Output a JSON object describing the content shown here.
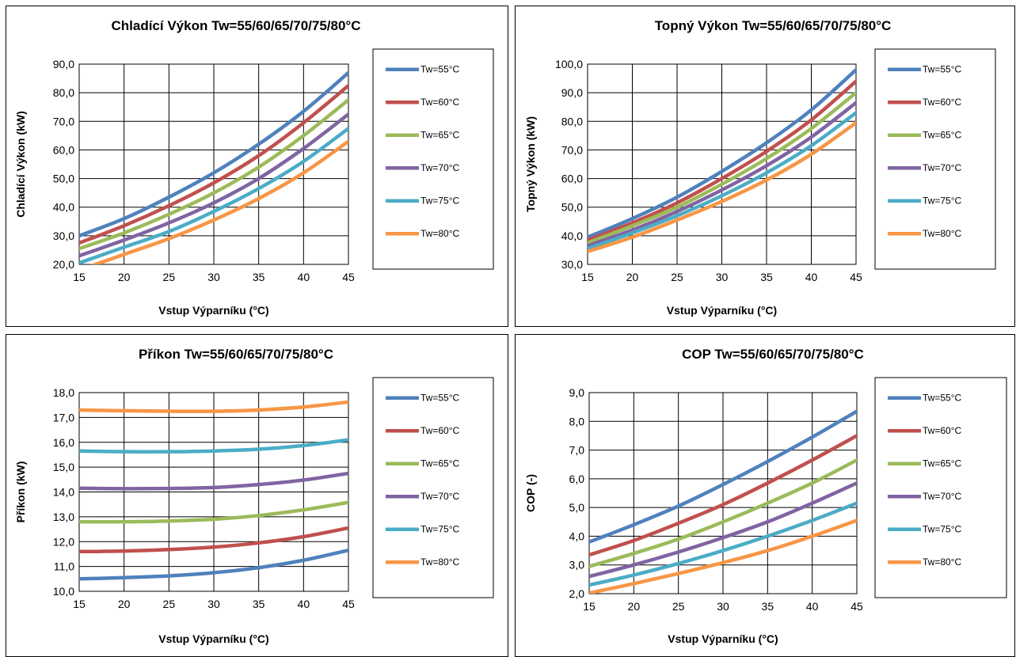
{
  "charts": [
    {
      "chart_data": {
        "type": "line",
        "title": "Chladící Výkon Tw=55/60/65/70/75/80°C",
        "xlabel": "Vstup Výparníku (°C)",
        "ylabel": "Chladící Výkon (kW)",
        "xlim": [
          15,
          45
        ],
        "ylim": [
          20,
          90
        ],
        "xticks": [
          "15",
          "20",
          "25",
          "30",
          "35",
          "40",
          "45"
        ],
        "yticks": [
          "20,0",
          "30,0",
          "40,0",
          "50,0",
          "60,0",
          "70,0",
          "80,0",
          "90,0"
        ],
        "x": [
          15,
          20,
          25,
          30,
          35,
          40,
          45
        ],
        "grid": true,
        "legend": "right",
        "series": [
          {
            "name": "Tw=55°C",
            "color": "#4F81BD",
            "values": [
              30.0,
              36.0,
              43.5,
              52.0,
              62.0,
              73.5,
              87.0
            ]
          },
          {
            "name": "Tw=60°C",
            "color": "#C0504D",
            "values": [
              27.5,
              33.5,
              40.5,
              48.5,
              58.0,
              69.5,
              82.5
            ]
          },
          {
            "name": "Tw=65°C",
            "color": "#9BBB59",
            "values": [
              25.5,
              31.0,
              37.5,
              45.0,
              54.0,
              65.0,
              77.5
            ]
          },
          {
            "name": "Tw=70°C",
            "color": "#8064A2",
            "values": [
              23.0,
              28.5,
              34.5,
              41.5,
              50.0,
              60.5,
              72.5
            ]
          },
          {
            "name": "Tw=75°C",
            "color": "#4BACC6",
            "values": [
              20.5,
              26.0,
              31.5,
              38.5,
              46.5,
              56.0,
              67.5
            ]
          },
          {
            "name": "Tw=80°C",
            "color": "#F79646",
            "values": [
              18.0,
              23.5,
              29.0,
              35.5,
              43.0,
              52.0,
              63.0
            ]
          }
        ]
      }
    },
    {
      "chart_data": {
        "type": "line",
        "title": "Topný Výkon Tw=55/60/65/70/75/80°C",
        "xlabel": "Vstup Výparníku (°C)",
        "ylabel": "Topný Výkon (kW)",
        "xlim": [
          15,
          45
        ],
        "ylim": [
          30,
          100
        ],
        "xticks": [
          "15",
          "20",
          "25",
          "30",
          "35",
          "40",
          "45"
        ],
        "yticks": [
          "30,0",
          "40,0",
          "50,0",
          "60,0",
          "70,0",
          "80,0",
          "90,0",
          "100,0"
        ],
        "x": [
          15,
          20,
          25,
          30,
          35,
          40,
          45
        ],
        "grid": true,
        "legend": "right",
        "series": [
          {
            "name": "Tw=55°C",
            "color": "#4F81BD",
            "values": [
              39.5,
              46.0,
              53.5,
              62.5,
              72.5,
              84.0,
              98.0
            ]
          },
          {
            "name": "Tw=60°C",
            "color": "#C0504D",
            "values": [
              38.5,
              44.5,
              51.5,
              60.0,
              69.5,
              80.5,
              94.0
            ]
          },
          {
            "name": "Tw=65°C",
            "color": "#9BBB59",
            "values": [
              37.5,
              43.5,
              50.0,
              58.0,
              67.0,
              77.5,
              90.0
            ]
          },
          {
            "name": "Tw=70°C",
            "color": "#8064A2",
            "values": [
              36.5,
              42.0,
              48.5,
              56.0,
              64.5,
              74.5,
              86.5
            ]
          },
          {
            "name": "Tw=75°C",
            "color": "#4BACC6",
            "values": [
              35.5,
              41.0,
              47.0,
              54.0,
              62.0,
              71.5,
              83.0
            ]
          },
          {
            "name": "Tw=80°C",
            "color": "#F79646",
            "values": [
              34.5,
              39.5,
              45.5,
              52.0,
              59.5,
              68.5,
              79.5
            ]
          }
        ]
      }
    },
    {
      "chart_data": {
        "type": "line",
        "title": "Příkon Tw=55/60/65/70/75/80°C",
        "xlabel": "Vstup Výparníku (°C)",
        "ylabel": "Příkon (kW)",
        "xlim": [
          15,
          45
        ],
        "ylim": [
          10,
          18
        ],
        "xticks": [
          "15",
          "20",
          "25",
          "30",
          "35",
          "40",
          "45"
        ],
        "yticks": [
          "10,0",
          "11,0",
          "12,0",
          "13,0",
          "14,0",
          "15,0",
          "16,0",
          "17,0",
          "18,0"
        ],
        "x": [
          15,
          20,
          25,
          30,
          35,
          40,
          45
        ],
        "grid": true,
        "legend": "right",
        "series": [
          {
            "name": "Tw=55°C",
            "color": "#4F81BD",
            "values": [
              10.5,
              10.55,
              10.62,
              10.75,
              10.95,
              11.25,
              11.65
            ]
          },
          {
            "name": "Tw=60°C",
            "color": "#C0504D",
            "values": [
              11.6,
              11.62,
              11.68,
              11.78,
              11.95,
              12.2,
              12.55
            ]
          },
          {
            "name": "Tw=65°C",
            "color": "#9BBB59",
            "values": [
              12.8,
              12.8,
              12.83,
              12.9,
              13.05,
              13.28,
              13.58
            ]
          },
          {
            "name": "Tw=70°C",
            "color": "#8064A2",
            "values": [
              14.15,
              14.13,
              14.14,
              14.18,
              14.3,
              14.48,
              14.75
            ]
          },
          {
            "name": "Tw=75°C",
            "color": "#4BACC6",
            "values": [
              15.65,
              15.62,
              15.62,
              15.65,
              15.72,
              15.87,
              16.1
            ]
          },
          {
            "name": "Tw=80°C",
            "color": "#F79646",
            "values": [
              17.3,
              17.27,
              17.25,
              17.25,
              17.3,
              17.42,
              17.62
            ]
          }
        ]
      }
    },
    {
      "chart_data": {
        "type": "line",
        "title": "COP Tw=55/60/65/70/75/80°C",
        "xlabel": "Vstup Výparníku (°C)",
        "ylabel": "COP (-)",
        "xlim": [
          15,
          45
        ],
        "ylim": [
          2,
          9
        ],
        "xticks": [
          "15",
          "20",
          "25",
          "30",
          "35",
          "40",
          "45"
        ],
        "yticks": [
          "2,0",
          "3,0",
          "4,0",
          "5,0",
          "6,0",
          "7,0",
          "8,0",
          "9,0"
        ],
        "x": [
          15,
          20,
          25,
          30,
          35,
          40,
          45
        ],
        "grid": true,
        "legend": "right",
        "series": [
          {
            "name": "Tw=55°C",
            "color": "#4F81BD",
            "values": [
              3.8,
              4.4,
              5.05,
              5.8,
              6.6,
              7.45,
              8.35
            ]
          },
          {
            "name": "Tw=60°C",
            "color": "#C0504D",
            "values": [
              3.35,
              3.85,
              4.45,
              5.1,
              5.85,
              6.65,
              7.5
            ]
          },
          {
            "name": "Tw=65°C",
            "color": "#9BBB59",
            "values": [
              2.95,
              3.4,
              3.9,
              4.5,
              5.15,
              5.85,
              6.65
            ]
          },
          {
            "name": "Tw=70°C",
            "color": "#8064A2",
            "values": [
              2.6,
              3.0,
              3.45,
              3.95,
              4.5,
              5.15,
              5.85
            ]
          },
          {
            "name": "Tw=75°C",
            "color": "#4BACC6",
            "values": [
              2.3,
              2.65,
              3.05,
              3.5,
              4.0,
              4.55,
              5.15
            ]
          },
          {
            "name": "Tw=80°C",
            "color": "#F79646",
            "values": [
              2.02,
              2.35,
              2.7,
              3.08,
              3.5,
              4.0,
              4.55
            ]
          }
        ]
      }
    }
  ]
}
